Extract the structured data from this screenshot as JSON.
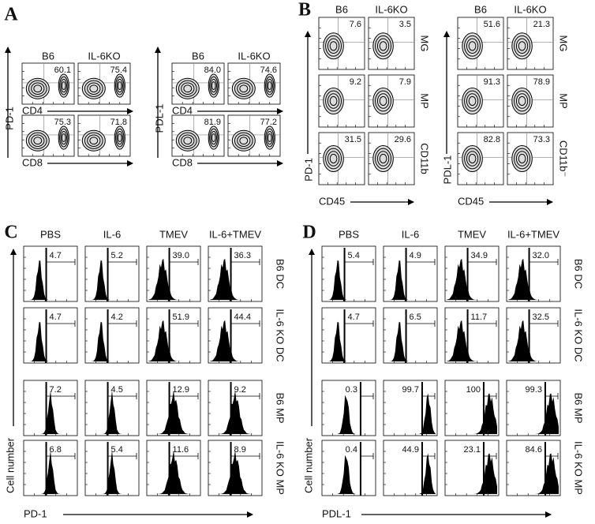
{
  "panels": [
    {
      "label": "A",
      "groups": [
        {
          "columns": [
            "B6",
            "IL-6KO"
          ],
          "y_label": "PD-1",
          "rows": [
            {
              "x_label": "CD4",
              "values": [
                "60.1",
                "75.4"
              ]
            },
            {
              "x_label": "CD8",
              "values": [
                "75.3",
                "71.8"
              ]
            }
          ]
        },
        {
          "columns": [
            "B6",
            "IL-6KO"
          ],
          "y_label": "PDL-1",
          "rows": [
            {
              "x_label": "CD4",
              "values": [
                "84.0",
                "74.6"
              ]
            },
            {
              "x_label": "CD8",
              "values": [
                "81.9",
                "77.2"
              ]
            }
          ]
        }
      ]
    },
    {
      "label": "B",
      "groups": [
        {
          "columns": [
            "B6",
            "IL-6KO"
          ],
          "y_label": "PD-1",
          "x_label": "CD45",
          "rows": [
            {
              "row_label": "MG",
              "values": [
                "7.6",
                "3.5"
              ]
            },
            {
              "row_label": "MP",
              "values": [
                "9.2",
                "7.9"
              ]
            },
            {
              "row_label": "CD11b",
              "values": [
                "31.5",
                "29.6"
              ]
            }
          ]
        },
        {
          "columns": [
            "B6",
            "IL-6KO"
          ],
          "y_label": "PDL-1",
          "x_label": "CD45",
          "rows": [
            {
              "row_label": "MG",
              "values": [
                "51.6",
                "21.3"
              ]
            },
            {
              "row_label": "MP",
              "values": [
                "91.3",
                "78.9"
              ]
            },
            {
              "row_label": "CD11b⁻",
              "values": [
                "82.8",
                "73.3"
              ]
            }
          ]
        }
      ]
    },
    {
      "label": "C",
      "columns": [
        "PBS",
        "IL-6",
        "TMEV",
        "IL-6+TMEV"
      ],
      "y_label": "Cell number",
      "x_label": "PD-1",
      "rows": [
        {
          "row_label": "B6 DC",
          "values": [
            "4.7",
            "5.2",
            "39.0",
            "36.3"
          ]
        },
        {
          "row_label": "IL-6 KO DC",
          "values": [
            "4.7",
            "4.2",
            "51.9",
            "44.4"
          ]
        },
        {
          "row_label": "B6 MP",
          "values": [
            "7.2",
            "4.5",
            "12.9",
            "9.2"
          ]
        },
        {
          "row_label": "IL-6 KO MP",
          "values": [
            "6.8",
            "5.4",
            "11.6",
            "8.9"
          ]
        }
      ]
    },
    {
      "label": "D",
      "columns": [
        "PBS",
        "IL-6",
        "TMEV",
        "IL-6+TMEV"
      ],
      "y_label": "Cell number",
      "x_label": "PDL-1",
      "rows": [
        {
          "row_label": "B6 DC",
          "values": [
            "5.4",
            "4.9",
            "34.9",
            "32.0"
          ]
        },
        {
          "row_label": "IL-6 KO DC",
          "values": [
            "4.7",
            "6.5",
            "11.7",
            "32.5"
          ]
        },
        {
          "row_label": "B6 MP",
          "values": [
            "0.3",
            "99.7",
            "100",
            "99.3"
          ]
        },
        {
          "row_label": "IL-6 KO MP",
          "values": [
            "0.4",
            "44.9",
            "23.1",
            "84.6"
          ]
        }
      ]
    }
  ]
}
